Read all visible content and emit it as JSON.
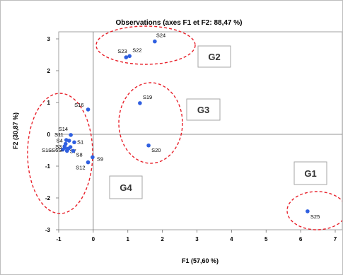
{
  "chart_data": {
    "type": "scatter",
    "title": "Observations (axes F1 et F2: 88,47 %)",
    "xlabel": "F1 (57,60 %)",
    "ylabel": "F2 (30,87 %)",
    "xlim": [
      -1,
      7
    ],
    "ylim": [
      -3,
      3
    ],
    "x_ticks": [
      "-1",
      "0",
      "1",
      "2",
      "3",
      "4",
      "5",
      "6",
      "7"
    ],
    "y_ticks": [
      "-3",
      "-2",
      "-1",
      "0",
      "1",
      "2",
      "3"
    ],
    "grid": false,
    "point_color": "#2f5fe0",
    "points": [
      {
        "label": "S24",
        "x": 1.78,
        "y": 2.92
      },
      {
        "label": "S23",
        "x": 0.95,
        "y": 2.42
      },
      {
        "label": "S22",
        "x": 1.05,
        "y": 2.46
      },
      {
        "label": "S19",
        "x": 1.35,
        "y": 0.98
      },
      {
        "label": "S16",
        "x": -0.15,
        "y": 0.78
      },
      {
        "label": "S20",
        "x": 1.6,
        "y": -0.35
      },
      {
        "label": "S25",
        "x": 6.2,
        "y": -2.42
      },
      {
        "label": "S14",
        "x": -0.65,
        "y": -0.02
      },
      {
        "label": "S11",
        "x": -0.78,
        "y": -0.18
      },
      {
        "label": "S1",
        "x": -0.55,
        "y": -0.25
      },
      {
        "label": "S4",
        "x": -0.8,
        "y": -0.3
      },
      {
        "label": "S3",
        "x": -0.83,
        "y": -0.38
      },
      {
        "label": "S7",
        "x": -0.72,
        "y": -0.45
      },
      {
        "label": "S8",
        "x": -0.58,
        "y": -0.52
      },
      {
        "label": "S12",
        "x": -0.15,
        "y": -0.88
      },
      {
        "label": "S9",
        "x": -0.02,
        "y": -0.72
      }
    ],
    "dense_cluster_text": "S1̶S̶S6S̶",
    "groups": [
      {
        "label": "G2"
      },
      {
        "label": "G3"
      },
      {
        "label": "G4"
      },
      {
        "label": "G1"
      }
    ],
    "ellipse_color": "#e8202a"
  }
}
